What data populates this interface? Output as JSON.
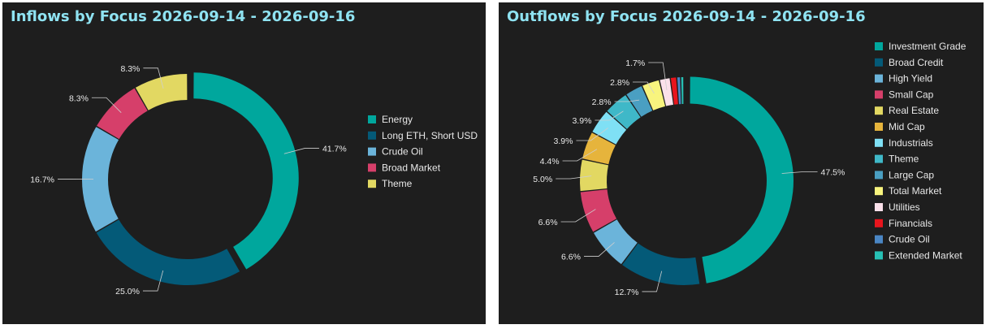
{
  "colors": {
    "Energy": "#00a79d",
    "Long ETH, Short USD": "#045a78",
    "Crude Oil": "#6bb4da",
    "Broad Market": "#d63f6a",
    "Theme": "#e2d862",
    "Investment Grade": "#00a79d",
    "Broad Credit": "#045a78",
    "High Yield": "#6bb4da",
    "Small Cap": "#d63f6a",
    "Real Estate": "#e2d862",
    "Mid Cap": "#e6b43c",
    "Industrials": "#7fe0f5",
    "Large Cap": "#4a9fc2",
    "Total Market": "#f8f47e",
    "Utilities": "#fbe0ea",
    "Financials": "#e8151d",
    "Extended Market": "#27c0b4",
    "Outflow Theme": "#3fb8c8",
    "Outflow Crude Oil": "#4a86c4"
  },
  "chart_data": [
    {
      "type": "pie",
      "title": "Inflows by Focus 2026-09-14 - 2026-09-16",
      "legend_position": "right",
      "slices": [
        {
          "label": "Energy",
          "value": 41.7,
          "display": "41.7%"
        },
        {
          "label": "Long ETH, Short USD",
          "value": 25.0,
          "display": "25.0%"
        },
        {
          "label": "Crude Oil",
          "value": 16.7,
          "display": "16.7%"
        },
        {
          "label": "Broad Market",
          "value": 8.3,
          "display": "8.3%"
        },
        {
          "label": "Theme",
          "value": 8.3,
          "display": "8.3%"
        }
      ]
    },
    {
      "type": "pie",
      "title": "Outflows by Focus 2026-09-14 - 2026-09-16",
      "legend_position": "right",
      "slices": [
        {
          "label": "Investment Grade",
          "value": 47.5,
          "display": "47.5%"
        },
        {
          "label": "Broad Credit",
          "value": 12.7,
          "display": "12.7%"
        },
        {
          "label": "High Yield",
          "value": 6.6,
          "display": "6.6%"
        },
        {
          "label": "Small Cap",
          "value": 6.6,
          "display": "6.6%"
        },
        {
          "label": "Real Estate",
          "value": 5.0,
          "display": "5.0%"
        },
        {
          "label": "Mid Cap",
          "value": 4.4,
          "display": "4.4%"
        },
        {
          "label": "Industrials",
          "value": 3.9,
          "display": "3.9%"
        },
        {
          "label": "Theme",
          "value": 3.9,
          "display": "3.9%"
        },
        {
          "label": "Large Cap",
          "value": 2.8,
          "display": "2.8%"
        },
        {
          "label": "Total Market",
          "value": 2.8,
          "display": "2.8%"
        },
        {
          "label": "Utilities",
          "value": 1.7,
          "display": "1.7%"
        },
        {
          "label": "Financials",
          "value": 1.0,
          "display": ""
        },
        {
          "label": "Crude Oil",
          "value": 0.6,
          "display": ""
        },
        {
          "label": "Extended Market",
          "value": 0.5,
          "display": ""
        }
      ]
    }
  ]
}
